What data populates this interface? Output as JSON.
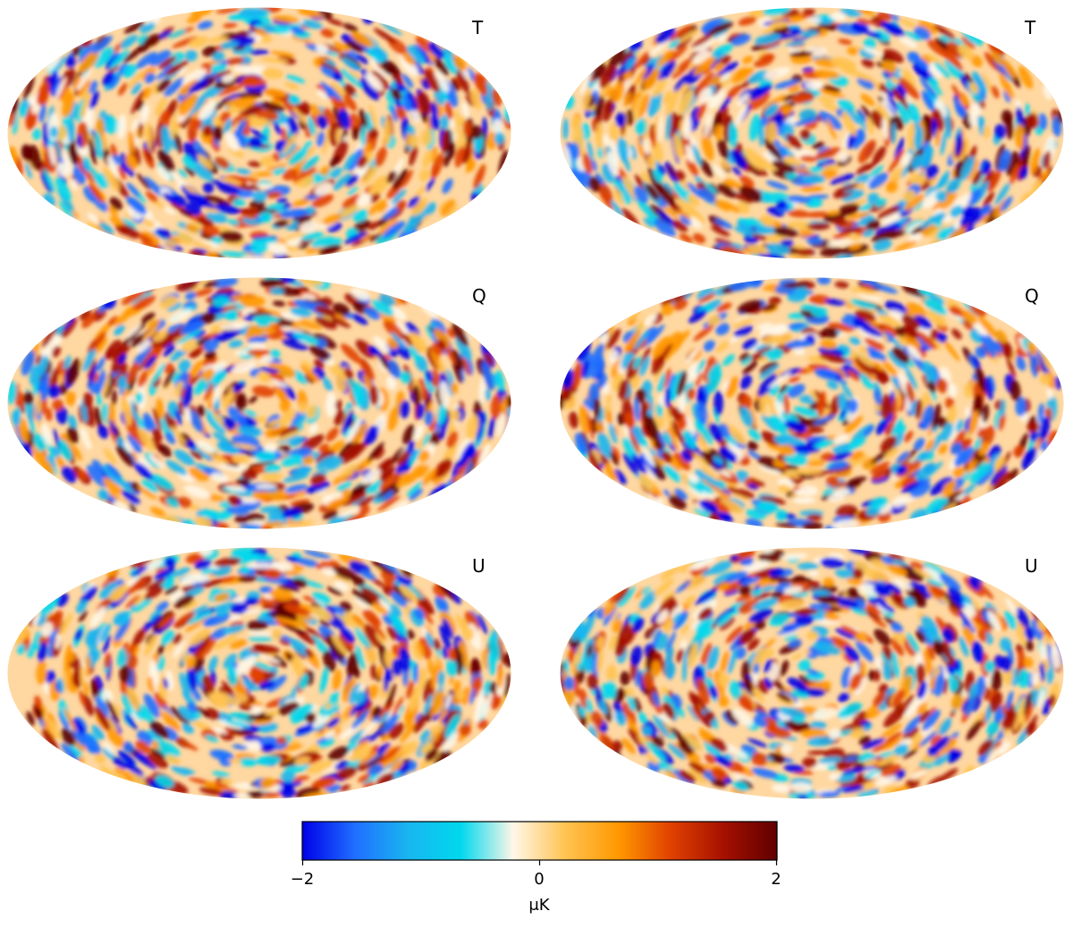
{
  "chart_data": {
    "type": "heatmap",
    "projection": "mollweide",
    "layout": "3 rows x 2 columns",
    "panels": [
      {
        "label": "T",
        "row": 1,
        "column": "left"
      },
      {
        "label": "T",
        "row": 1,
        "column": "right"
      },
      {
        "label": "Q",
        "row": 2,
        "column": "left"
      },
      {
        "label": "Q",
        "row": 2,
        "column": "right"
      },
      {
        "label": "U",
        "row": 3,
        "column": "left"
      },
      {
        "label": "U",
        "row": 3,
        "column": "right"
      }
    ],
    "colorbar": {
      "min": -2,
      "max": 2,
      "ticks": [
        -2,
        0,
        2
      ],
      "tick_labels": [
        "−2",
        "0",
        "2"
      ],
      "unit": "μK",
      "orientation": "horizontal",
      "colormap": [
        "#0000e8",
        "#1f6fff",
        "#19b5f0",
        "#00d8ee",
        "#fff7e8",
        "#ffc350",
        "#ff9800",
        "#e04000",
        "#a41000",
        "#600000"
      ]
    }
  }
}
